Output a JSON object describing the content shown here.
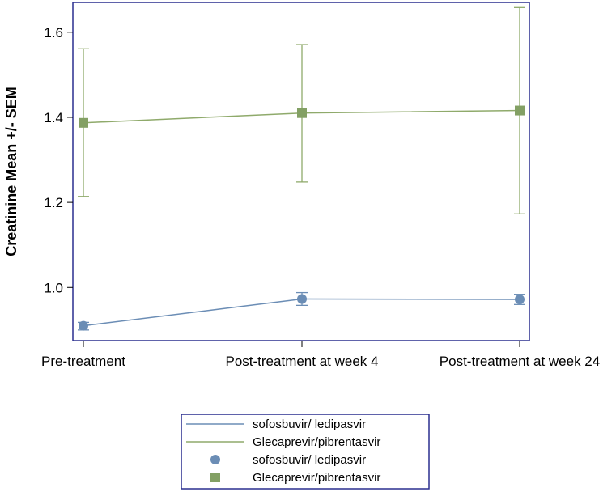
{
  "chart_data": {
    "type": "line",
    "title": "",
    "xlabel": "",
    "ylabel": "Creatinine Mean +/- SEM",
    "categories": [
      "Pre-treatment",
      "Post-treatment at week 4",
      "Post-treatment at week 24"
    ],
    "ylim": [
      0.875,
      1.67
    ],
    "yticks": [
      1.0,
      1.2,
      1.4,
      1.6
    ],
    "ytick_labels": [
      "1.0",
      "1.2",
      "1.4",
      "1.6"
    ],
    "grid": false,
    "legend_placement": "bottom",
    "series": [
      {
        "name": "sofosbuvir/ ledipasvir",
        "values": [
          0.91,
          0.973,
          0.972
        ],
        "lower": [
          0.9,
          0.958,
          0.96
        ],
        "upper": [
          0.918,
          0.988,
          0.984
        ],
        "marker": "circle",
        "color": "#6b8db5",
        "marker_color": "#6b8db5"
      },
      {
        "name": "Glecaprevir/pibrentasvir",
        "values": [
          1.387,
          1.41,
          1.416
        ],
        "lower": [
          1.214,
          1.248,
          1.173
        ],
        "upper": [
          1.561,
          1.571,
          1.658
        ],
        "marker": "square",
        "color": "#8faa6b",
        "marker_color": "#83a064"
      }
    ],
    "legend": [
      {
        "label": "sofosbuvir/ ledipasvir",
        "kind": "line",
        "color": "#6b8db5"
      },
      {
        "label": "Glecaprevir/pibrentasvir",
        "kind": "line",
        "color": "#8faa6b"
      },
      {
        "label": "sofosbuvir/ ledipasvir",
        "kind": "circle",
        "color": "#6b8db5"
      },
      {
        "label": "Glecaprevir/pibrentasvir",
        "kind": "square",
        "color": "#83a064"
      }
    ],
    "frame_color": "#2a2f8f"
  }
}
